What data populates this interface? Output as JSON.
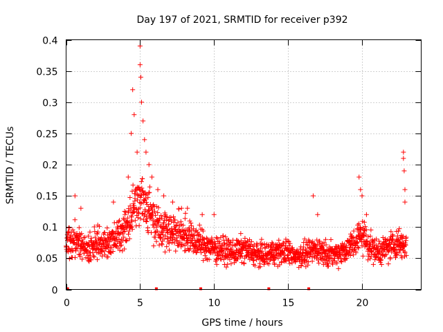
{
  "chart_data": {
    "type": "scatter",
    "title": "Day 197 of 2021, SRMTID for receiver p392",
    "xlabel": "GPS time / hours",
    "ylabel": "SRMTID / TECUs",
    "xlim": [
      0,
      24
    ],
    "ylim": [
      0,
      0.4
    ],
    "grid": true,
    "marker": "+",
    "series_color": "#ff0000",
    "xticks": [
      0,
      5,
      10,
      15,
      20
    ],
    "xtick_labels": [
      "0",
      "5",
      "10",
      "15",
      "20"
    ],
    "yticks": [
      0,
      0.05,
      0.1,
      0.15,
      0.2,
      0.25,
      0.3,
      0.35,
      0.4
    ],
    "ytick_labels": [
      "0",
      "0.05",
      "0.1",
      "0.15",
      "0.2",
      "0.25",
      "0.3",
      "0.35",
      "0.4"
    ],
    "trend_points": [
      [
        0.0,
        0.075
      ],
      [
        0.5,
        0.08
      ],
      [
        1.0,
        0.07
      ],
      [
        1.5,
        0.065
      ],
      [
        2.0,
        0.075
      ],
      [
        2.5,
        0.07
      ],
      [
        3.0,
        0.075
      ],
      [
        3.5,
        0.085
      ],
      [
        4.0,
        0.1
      ],
      [
        4.5,
        0.13
      ],
      [
        5.0,
        0.15
      ],
      [
        5.5,
        0.13
      ],
      [
        6.0,
        0.11
      ],
      [
        6.5,
        0.1
      ],
      [
        7.0,
        0.095
      ],
      [
        7.5,
        0.09
      ],
      [
        8.0,
        0.09
      ],
      [
        8.5,
        0.08
      ],
      [
        9.0,
        0.075
      ],
      [
        9.5,
        0.07
      ],
      [
        10.0,
        0.065
      ],
      [
        10.5,
        0.065
      ],
      [
        11.0,
        0.06
      ],
      [
        11.5,
        0.06
      ],
      [
        12.0,
        0.065
      ],
      [
        12.5,
        0.06
      ],
      [
        13.0,
        0.055
      ],
      [
        13.5,
        0.055
      ],
      [
        14.0,
        0.06
      ],
      [
        14.5,
        0.06
      ],
      [
        15.0,
        0.06
      ],
      [
        15.5,
        0.055
      ],
      [
        16.0,
        0.055
      ],
      [
        16.5,
        0.06
      ],
      [
        17.0,
        0.065
      ],
      [
        17.5,
        0.06
      ],
      [
        18.0,
        0.055
      ],
      [
        18.5,
        0.06
      ],
      [
        19.0,
        0.065
      ],
      [
        19.5,
        0.075
      ],
      [
        20.0,
        0.09
      ],
      [
        20.5,
        0.07
      ],
      [
        21.0,
        0.06
      ],
      [
        21.5,
        0.065
      ],
      [
        22.0,
        0.07
      ],
      [
        22.5,
        0.075
      ],
      [
        23.0,
        0.07
      ]
    ],
    "peak_points": [
      [
        4.2,
        0.18
      ],
      [
        4.4,
        0.25
      ],
      [
        4.5,
        0.32
      ],
      [
        4.6,
        0.28
      ],
      [
        4.8,
        0.22
      ],
      [
        5.0,
        0.39
      ],
      [
        5.0,
        0.36
      ],
      [
        5.05,
        0.34
      ],
      [
        5.1,
        0.3
      ],
      [
        5.2,
        0.27
      ],
      [
        5.3,
        0.24
      ],
      [
        5.4,
        0.22
      ],
      [
        5.6,
        0.2
      ],
      [
        5.8,
        0.18
      ],
      [
        6.2,
        0.16
      ],
      [
        6.6,
        0.15
      ],
      [
        7.2,
        0.14
      ],
      [
        7.8,
        0.13
      ],
      [
        8.2,
        0.13
      ],
      [
        9.2,
        0.12
      ],
      [
        10.0,
        0.12
      ],
      [
        16.7,
        0.15
      ],
      [
        17.0,
        0.12
      ],
      [
        19.8,
        0.18
      ],
      [
        19.9,
        0.16
      ],
      [
        20.0,
        0.15
      ],
      [
        20.3,
        0.12
      ],
      [
        22.8,
        0.22
      ],
      [
        22.8,
        0.21
      ],
      [
        22.85,
        0.19
      ],
      [
        22.9,
        0.16
      ],
      [
        22.9,
        0.14
      ],
      [
        0.6,
        0.15
      ],
      [
        1.0,
        0.13
      ],
      [
        3.2,
        0.14
      ]
    ],
    "near_zero_points": [
      0.1,
      6.1,
      9.1,
      13.7,
      16.4
    ],
    "sample_count": 1700
  }
}
